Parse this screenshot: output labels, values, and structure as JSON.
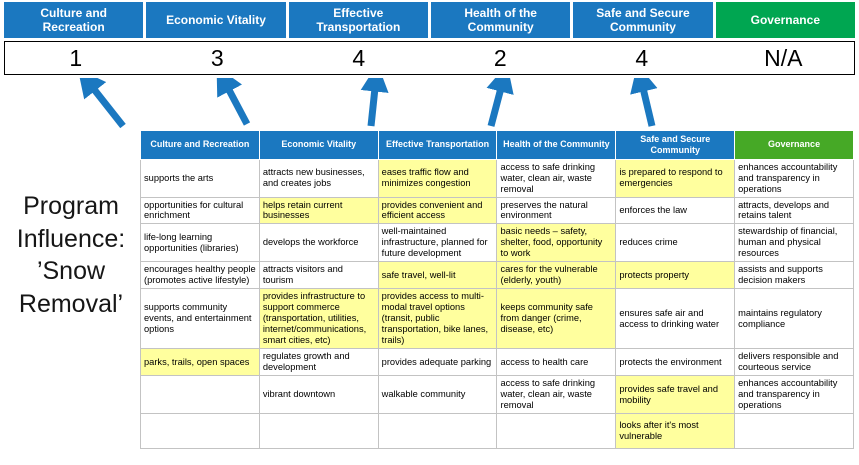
{
  "title": "Program Influence: ’Snow Removal’",
  "colors": {
    "header_blue": "#1b78c0",
    "header_green": "#00a651",
    "matrix_header_green": "#46a926",
    "arrow_blue": "#1b78c0",
    "highlight_yellow": "#ffff9e"
  },
  "scoreboard": {
    "columns": [
      {
        "label": "Culture and Recreation",
        "score": "1",
        "color": "blue"
      },
      {
        "label": "Economic Vitality",
        "score": "3",
        "color": "blue"
      },
      {
        "label": "Effective Transportation",
        "score": "4",
        "color": "blue"
      },
      {
        "label": "Health of the Community",
        "score": "2",
        "color": "blue"
      },
      {
        "label": "Safe and Secure Community",
        "score": "4",
        "color": "blue"
      },
      {
        "label": "Governance",
        "score": "N/A",
        "color": "green"
      }
    ]
  },
  "matrix": {
    "headers": [
      {
        "label": "Culture and Recreation",
        "color": "blue"
      },
      {
        "label": "Economic Vitality",
        "color": "blue"
      },
      {
        "label": "Effective Transportation",
        "color": "blue"
      },
      {
        "label": "Health of the Community",
        "color": "blue"
      },
      {
        "label": "Safe and Secure Community",
        "color": "blue"
      },
      {
        "label": "Governance",
        "color": "green"
      }
    ],
    "rows": [
      [
        {
          "text": "supports the arts",
          "highlight": false
        },
        {
          "text": "attracts new businesses, and creates jobs",
          "highlight": false
        },
        {
          "text": "eases traffic flow and minimizes congestion",
          "highlight": true
        },
        {
          "text": "access to safe drinking water, clean air, waste removal",
          "highlight": false
        },
        {
          "text": "is prepared to respond to emergencies",
          "highlight": true
        },
        {
          "text": "enhances accountability and transparency in operations",
          "highlight": false
        }
      ],
      [
        {
          "text": "opportunities for cultural enrichment",
          "highlight": false
        },
        {
          "text": "helps retain current businesses",
          "highlight": true
        },
        {
          "text": "provides convenient and efficient access",
          "highlight": true
        },
        {
          "text": "preserves the natural environment",
          "highlight": false
        },
        {
          "text": "enforces the law",
          "highlight": false
        },
        {
          "text": "attracts, develops and retains talent",
          "highlight": false
        }
      ],
      [
        {
          "text": "life-long learning opportunities (libraries)",
          "highlight": false
        },
        {
          "text": "develops the workforce",
          "highlight": false
        },
        {
          "text": "well-maintained infrastructure, planned for future development",
          "highlight": false
        },
        {
          "text": "basic needs – safety, shelter, food, opportunity to work",
          "highlight": true
        },
        {
          "text": "reduces crime",
          "highlight": false
        },
        {
          "text": "stewardship of financial, human and physical resources",
          "highlight": false
        }
      ],
      [
        {
          "text": "encourages healthy people (promotes active lifestyle)",
          "highlight": false
        },
        {
          "text": "attracts visitors and tourism",
          "highlight": false
        },
        {
          "text": "safe travel, well-lit",
          "highlight": true
        },
        {
          "text": "cares for the vulnerable (elderly, youth)",
          "highlight": true
        },
        {
          "text": "protects property",
          "highlight": true
        },
        {
          "text": "assists and supports decision makers",
          "highlight": false
        }
      ],
      [
        {
          "text": "supports community events, and entertainment options",
          "highlight": false
        },
        {
          "text": "provides infrastructure to support commerce (transportation, utilities, internet/communications, smart cities, etc)",
          "highlight": true
        },
        {
          "text": "provides access to multi-modal travel options (transit, public transportation, bike lanes, trails)",
          "highlight": true
        },
        {
          "text": "keeps community safe from danger (crime, disease, etc)",
          "highlight": true
        },
        {
          "text": "ensures safe air and access to drinking water",
          "highlight": false
        },
        {
          "text": "maintains regulatory compliance",
          "highlight": false
        }
      ],
      [
        {
          "text": "parks, trails, open spaces",
          "highlight": true
        },
        {
          "text": "regulates growth and development",
          "highlight": false
        },
        {
          "text": "provides adequate parking",
          "highlight": false
        },
        {
          "text": "access to health care",
          "highlight": false
        },
        {
          "text": "protects the environment",
          "highlight": false
        },
        {
          "text": "delivers responsible and courteous service",
          "highlight": false
        }
      ],
      [
        {
          "text": "",
          "highlight": false
        },
        {
          "text": "vibrant downtown",
          "highlight": false
        },
        {
          "text": "walkable community",
          "highlight": false
        },
        {
          "text": "access to safe drinking water, clean air, waste removal",
          "highlight": false
        },
        {
          "text": "provides safe travel and mobility",
          "highlight": true
        },
        {
          "text": "enhances accountability and transparency in operations",
          "highlight": false
        }
      ],
      [
        {
          "text": "",
          "highlight": false
        },
        {
          "text": "",
          "highlight": false
        },
        {
          "text": "",
          "highlight": false
        },
        {
          "text": "",
          "highlight": false
        },
        {
          "text": "looks after it's most vulnerable",
          "highlight": true
        },
        {
          "text": "",
          "highlight": false
        }
      ]
    ]
  }
}
